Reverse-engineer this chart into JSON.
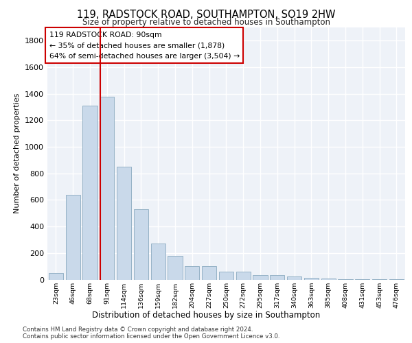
{
  "title_line1": "119, RADSTOCK ROAD, SOUTHAMPTON, SO19 2HW",
  "title_line2": "Size of property relative to detached houses in Southampton",
  "xlabel": "Distribution of detached houses by size in Southampton",
  "ylabel": "Number of detached properties",
  "bar_color": "#c9d9ea",
  "bar_edgecolor": "#8aaabf",
  "vline_color": "#cc0000",
  "annotation_text": "119 RADSTOCK ROAD: 90sqm\n← 35% of detached houses are smaller (1,878)\n64% of semi-detached houses are larger (3,504) →",
  "annotation_box_edgecolor": "#cc0000",
  "annotation_box_facecolor": "#ffffff",
  "footnote": "Contains HM Land Registry data © Crown copyright and database right 2024.\nContains public sector information licensed under the Open Government Licence v3.0.",
  "categories": [
    "23sqm",
    "46sqm",
    "68sqm",
    "91sqm",
    "114sqm",
    "136sqm",
    "159sqm",
    "182sqm",
    "204sqm",
    "227sqm",
    "250sqm",
    "272sqm",
    "295sqm",
    "317sqm",
    "340sqm",
    "363sqm",
    "385sqm",
    "408sqm",
    "431sqm",
    "453sqm",
    "476sqm"
  ],
  "values": [
    50,
    640,
    1310,
    1380,
    850,
    530,
    270,
    180,
    100,
    100,
    60,
    60,
    35,
    35,
    25,
    15,
    10,
    5,
    5,
    5,
    5
  ],
  "ylim": [
    0,
    1900
  ],
  "yticks": [
    0,
    200,
    400,
    600,
    800,
    1000,
    1200,
    1400,
    1600,
    1800
  ],
  "bg_color": "#eef2f8",
  "grid_color": "#ffffff",
  "fig_bg_color": "#ffffff",
  "vline_xindex": 2.6
}
